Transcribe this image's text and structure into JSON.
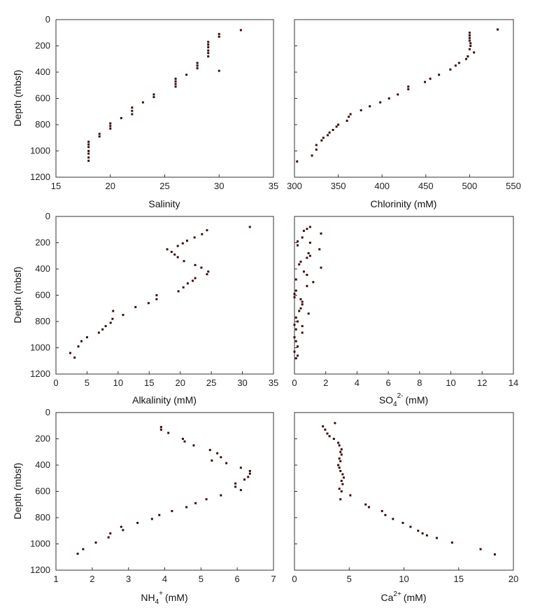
{
  "chart_data": [
    {
      "type": "scatter",
      "xlabel": "Salinity",
      "ylabel": "Depth (mbsf)",
      "xlim": [
        15,
        35
      ],
      "ylim": [
        0,
        1200
      ],
      "xticks": [
        15,
        20,
        25,
        30,
        35
      ],
      "yticks": [
        0,
        200,
        400,
        600,
        800,
        1000,
        1200
      ],
      "y_inverted": true,
      "grid": false,
      "points": [
        [
          32,
          80
        ],
        [
          30,
          110
        ],
        [
          30,
          130
        ],
        [
          29,
          170
        ],
        [
          29,
          190
        ],
        [
          29,
          210
        ],
        [
          29,
          235
        ],
        [
          29,
          255
        ],
        [
          29,
          280
        ],
        [
          28,
          330
        ],
        [
          28,
          350
        ],
        [
          28,
          370
        ],
        [
          30,
          390
        ],
        [
          27,
          420
        ],
        [
          26,
          450
        ],
        [
          26,
          470
        ],
        [
          26,
          490
        ],
        [
          26,
          510
        ],
        [
          24,
          570
        ],
        [
          24,
          590
        ],
        [
          23,
          630
        ],
        [
          22,
          670
        ],
        [
          22,
          695
        ],
        [
          22,
          720
        ],
        [
          21,
          750
        ],
        [
          20,
          790
        ],
        [
          20,
          810
        ],
        [
          20,
          830
        ],
        [
          19,
          870
        ],
        [
          19,
          890
        ],
        [
          18,
          930
        ],
        [
          18,
          950
        ],
        [
          18,
          970
        ],
        [
          18,
          1000
        ],
        [
          18,
          1020
        ],
        [
          18,
          1050
        ],
        [
          18,
          1075
        ]
      ]
    },
    {
      "type": "scatter",
      "xlabel": "Chlorinity (mM)",
      "ylabel": "",
      "xlim": [
        300,
        550
      ],
      "ylim": [
        0,
        1200
      ],
      "xticks": [
        300,
        350,
        400,
        450,
        500,
        550
      ],
      "yticks": [
        0,
        200,
        400,
        600,
        800,
        1000,
        1200
      ],
      "y_inverted": true,
      "grid": false,
      "points": [
        [
          532,
          75
        ],
        [
          500,
          100
        ],
        [
          500,
          120
        ],
        [
          500,
          140
        ],
        [
          500,
          160
        ],
        [
          501,
          180
        ],
        [
          501,
          200
        ],
        [
          500,
          225
        ],
        [
          505,
          250
        ],
        [
          498,
          280
        ],
        [
          496,
          300
        ],
        [
          488,
          330
        ],
        [
          484,
          350
        ],
        [
          478,
          380
        ],
        [
          465,
          420
        ],
        [
          455,
          450
        ],
        [
          449,
          475
        ],
        [
          430,
          510
        ],
        [
          430,
          530
        ],
        [
          418,
          570
        ],
        [
          408,
          600
        ],
        [
          398,
          630
        ],
        [
          386,
          660
        ],
        [
          376,
          690
        ],
        [
          364,
          720
        ],
        [
          362,
          740
        ],
        [
          360,
          770
        ],
        [
          350,
          800
        ],
        [
          348,
          815
        ],
        [
          344,
          840
        ],
        [
          340,
          860
        ],
        [
          338,
          880
        ],
        [
          333,
          900
        ],
        [
          331,
          920
        ],
        [
          325,
          955
        ],
        [
          325,
          990
        ],
        [
          320,
          1035
        ],
        [
          303,
          1080
        ]
      ]
    },
    {
      "type": "scatter",
      "xlabel": "Alkalinity (mM)",
      "ylabel": "Depth (mbsf)",
      "xlim": [
        0,
        35
      ],
      "ylim": [
        0,
        1200
      ],
      "xticks": [
        0,
        5,
        10,
        15,
        20,
        25,
        30,
        35
      ],
      "yticks": [
        0,
        200,
        400,
        600,
        800,
        1000,
        1200
      ],
      "y_inverted": true,
      "grid": false,
      "points": [
        [
          31.2,
          80
        ],
        [
          24.3,
          105
        ],
        [
          23.5,
          135
        ],
        [
          22.3,
          160
        ],
        [
          21.1,
          185
        ],
        [
          20.4,
          205
        ],
        [
          19.6,
          225
        ],
        [
          17.9,
          250
        ],
        [
          18.6,
          270
        ],
        [
          19.1,
          290
        ],
        [
          19.6,
          310
        ],
        [
          20.6,
          340
        ],
        [
          22.4,
          370
        ],
        [
          23.4,
          390
        ],
        [
          24.5,
          420
        ],
        [
          24.3,
          440
        ],
        [
          22.4,
          470
        ],
        [
          22.0,
          490
        ],
        [
          21.2,
          510
        ],
        [
          20.5,
          540
        ],
        [
          19.7,
          570
        ],
        [
          16.2,
          600
        ],
        [
          16.2,
          630
        ],
        [
          14.9,
          660
        ],
        [
          12.8,
          690
        ],
        [
          9.2,
          720
        ],
        [
          10.8,
          750
        ],
        [
          9.1,
          780
        ],
        [
          8.8,
          810
        ],
        [
          8.0,
          835
        ],
        [
          7.5,
          860
        ],
        [
          6.9,
          885
        ],
        [
          5.0,
          920
        ],
        [
          4.1,
          950
        ],
        [
          3.6,
          990
        ],
        [
          2.3,
          1040
        ],
        [
          3.0,
          1075
        ]
      ]
    },
    {
      "type": "scatter",
      "xlabel": "SO",
      "xlabel_sub": "4",
      "xlabel_sup": "2-",
      "xlabel_units": "(mM)",
      "ylabel": "",
      "xlim": [
        0,
        14
      ],
      "ylim": [
        0,
        1200
      ],
      "xticks": [
        0,
        2,
        4,
        6,
        8,
        10,
        12,
        14
      ],
      "yticks": [
        0,
        200,
        400,
        600,
        800,
        1000,
        1200
      ],
      "y_inverted": true,
      "grid": false,
      "points": [
        [
          1.0,
          80
        ],
        [
          0.8,
          95
        ],
        [
          0.6,
          110
        ],
        [
          1.7,
          130
        ],
        [
          0.5,
          160
        ],
        [
          0.2,
          190
        ],
        [
          1.0,
          200
        ],
        [
          0.2,
          220
        ],
        [
          1.6,
          250
        ],
        [
          0.9,
          280
        ],
        [
          1.0,
          300
        ],
        [
          0.8,
          315
        ],
        [
          0.4,
          345
        ],
        [
          0.3,
          365
        ],
        [
          1.7,
          390
        ],
        [
          0.6,
          420
        ],
        [
          0.8,
          445
        ],
        [
          0.1,
          480
        ],
        [
          1.2,
          500
        ],
        [
          0.8,
          530
        ],
        [
          0.1,
          565
        ],
        [
          0.0,
          590
        ],
        [
          0.0,
          615
        ],
        [
          0.4,
          630
        ],
        [
          0.5,
          650
        ],
        [
          0.5,
          670
        ],
        [
          0.4,
          700
        ],
        [
          0.3,
          720
        ],
        [
          0.9,
          740
        ],
        [
          0.1,
          770
        ],
        [
          0.2,
          800
        ],
        [
          0.0,
          825
        ],
        [
          0.5,
          835
        ],
        [
          0.1,
          860
        ],
        [
          0.5,
          885
        ],
        [
          0.0,
          920
        ],
        [
          0.1,
          950
        ],
        [
          0.2,
          990
        ],
        [
          0.0,
          1030
        ],
        [
          0.2,
          1060
        ],
        [
          0.1,
          1080
        ]
      ]
    },
    {
      "type": "scatter",
      "xlabel": "NH",
      "xlabel_sub": "4",
      "xlabel_sup": "+",
      "xlabel_units": "(mM)",
      "ylabel": "Depth (mbsf)",
      "xlim": [
        1,
        7
      ],
      "ylim": [
        0,
        1200
      ],
      "xticks": [
        1,
        2,
        3,
        4,
        5,
        6,
        7
      ],
      "yticks": [
        0,
        200,
        400,
        600,
        800,
        1000,
        1200
      ],
      "y_inverted": true,
      "grid": false,
      "points": [
        [
          3.9,
          110
        ],
        [
          3.9,
          130
        ],
        [
          4.1,
          155
        ],
        [
          4.5,
          200
        ],
        [
          4.55,
          220
        ],
        [
          4.8,
          250
        ],
        [
          5.25,
          285
        ],
        [
          5.45,
          310
        ],
        [
          5.55,
          340
        ],
        [
          5.3,
          365
        ],
        [
          5.7,
          385
        ],
        [
          6.1,
          420
        ],
        [
          6.35,
          445
        ],
        [
          6.35,
          465
        ],
        [
          6.3,
          490
        ],
        [
          6.2,
          510
        ],
        [
          5.95,
          540
        ],
        [
          5.95,
          565
        ],
        [
          6.1,
          590
        ],
        [
          5.55,
          630
        ],
        [
          5.15,
          660
        ],
        [
          4.85,
          690
        ],
        [
          4.6,
          720
        ],
        [
          4.2,
          750
        ],
        [
          3.85,
          780
        ],
        [
          3.65,
          810
        ],
        [
          3.25,
          840
        ],
        [
          2.8,
          870
        ],
        [
          2.85,
          895
        ],
        [
          2.5,
          920
        ],
        [
          2.45,
          950
        ],
        [
          2.1,
          990
        ],
        [
          1.75,
          1040
        ],
        [
          1.6,
          1075
        ]
      ]
    },
    {
      "type": "scatter",
      "xlabel": "Ca",
      "xlabel_sub": "",
      "xlabel_sup": "2+",
      "xlabel_units": "(mM)",
      "ylabel": "",
      "xlim": [
        0,
        20
      ],
      "ylim": [
        0,
        1200
      ],
      "xticks": [
        0,
        5,
        10,
        15,
        20
      ],
      "yticks": [
        0,
        200,
        400,
        600,
        800,
        1000,
        1200
      ],
      "y_inverted": true,
      "grid": false,
      "points": [
        [
          3.7,
          80
        ],
        [
          2.6,
          105
        ],
        [
          2.8,
          130
        ],
        [
          3.0,
          160
        ],
        [
          3.2,
          180
        ],
        [
          3.6,
          200
        ],
        [
          4.0,
          230
        ],
        [
          4.1,
          250
        ],
        [
          4.3,
          280
        ],
        [
          4.2,
          300
        ],
        [
          4.3,
          320
        ],
        [
          4.1,
          350
        ],
        [
          4.2,
          370
        ],
        [
          4.0,
          400
        ],
        [
          4.1,
          420
        ],
        [
          4.2,
          445
        ],
        [
          4.4,
          470
        ],
        [
          4.5,
          495
        ],
        [
          4.3,
          520
        ],
        [
          4.4,
          545
        ],
        [
          4.1,
          580
        ],
        [
          4.3,
          600
        ],
        [
          5.1,
          630
        ],
        [
          4.2,
          660
        ],
        [
          6.5,
          700
        ],
        [
          6.8,
          720
        ],
        [
          8.0,
          750
        ],
        [
          8.3,
          780
        ],
        [
          9.0,
          810
        ],
        [
          9.9,
          840
        ],
        [
          10.6,
          870
        ],
        [
          11.3,
          900
        ],
        [
          11.7,
          920
        ],
        [
          12.1,
          935
        ],
        [
          13.0,
          955
        ],
        [
          14.4,
          990
        ],
        [
          17.0,
          1040
        ],
        [
          18.3,
          1080
        ]
      ]
    }
  ]
}
